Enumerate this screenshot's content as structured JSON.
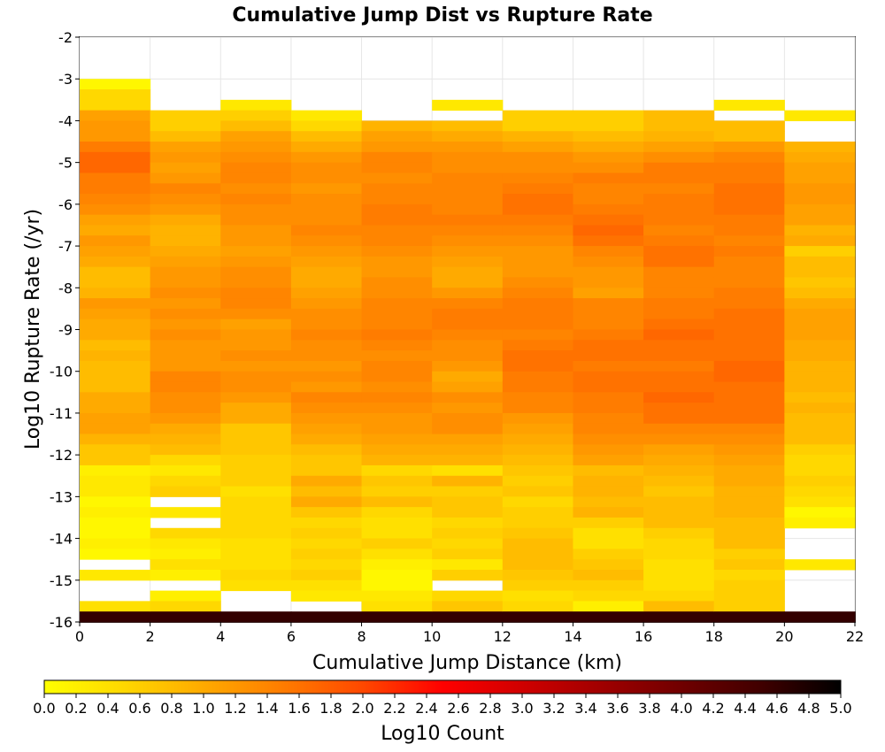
{
  "chart_data": {
    "type": "heatmap",
    "title": "Cumulative Jump Dist vs Rupture Rate",
    "xlabel": "Cumulative Jump Distance (km)",
    "ylabel": "Log10 Rupture Rate (/yr)",
    "xlim": [
      0,
      22
    ],
    "ylim": [
      -16,
      -2
    ],
    "x_ticks": [
      "0",
      "2",
      "4",
      "6",
      "8",
      "10",
      "12",
      "14",
      "16",
      "18",
      "20",
      "22"
    ],
    "y_ticks": [
      "-2",
      "-3",
      "-4",
      "-5",
      "-6",
      "-7",
      "-8",
      "-9",
      "-10",
      "-11",
      "-12",
      "-13",
      "-14",
      "-15",
      "-16"
    ],
    "x_bin_width": 2,
    "y_bin_height": 0.25,
    "y_top": -3,
    "grid": true,
    "colorbar": {
      "label": "Log10 Count",
      "range": [
        0,
        5
      ],
      "ticks": [
        "0.0",
        "0.2",
        "0.4",
        "0.6",
        "0.8",
        "1.0",
        "1.2",
        "1.4",
        "1.6",
        "1.8",
        "2.0",
        "2.2",
        "2.4",
        "2.6",
        "2.8",
        "3.0",
        "3.2",
        "3.4",
        "3.6",
        "3.8",
        "4.0",
        "4.2",
        "4.4",
        "4.6",
        "4.8",
        "5.0"
      ],
      "colors": [
        "#ffff00",
        "#ffd800",
        "#ffaa00",
        "#ff7c00",
        "#ff4800",
        "#ff0000",
        "#d00000",
        "#a00000",
        "#700000",
        "#400000",
        "#000000"
      ]
    },
    "columns": [
      {
        "x_start": 0,
        "values": [
          0.1,
          0.5,
          0.5,
          1.1,
          1.2,
          1.2,
          1.5,
          1.7,
          1.7,
          1.5,
          1.5,
          1.4,
          1.3,
          1.1,
          1.0,
          1.2,
          1.1,
          1.0,
          0.8,
          0.8,
          0.9,
          1.2,
          1.1,
          1.0,
          1.0,
          0.8,
          0.9,
          0.8,
          0.8,
          0.8,
          1.0,
          1.0,
          1.1,
          1.1,
          0.9,
          0.7,
          0.7,
          0.2,
          0.3,
          0.3,
          0.1,
          0.2,
          0.1,
          0.1,
          0.2,
          0.1,
          null,
          0.3,
          null,
          null,
          0.4,
          4.6
        ]
      },
      {
        "x_start": 2,
        "values": [
          null,
          null,
          null,
          0.6,
          0.6,
          0.8,
          1.1,
          1.2,
          1.1,
          1.2,
          1.4,
          1.3,
          1.2,
          1.0,
          0.9,
          0.9,
          1.0,
          1.1,
          1.2,
          1.2,
          1.3,
          1.2,
          1.3,
          1.2,
          1.3,
          1.2,
          1.2,
          1.2,
          1.4,
          1.4,
          1.3,
          1.3,
          1.2,
          1.0,
          0.9,
          0.8,
          0.5,
          0.3,
          0.5,
          0.6,
          null,
          0.3,
          null,
          0.5,
          0.3,
          0.2,
          0.4,
          0.2,
          null,
          0.2,
          0.5,
          4.6
        ]
      },
      {
        "x_start": 4,
        "values": [
          null,
          null,
          0.3,
          0.6,
          0.8,
          1.1,
          1.2,
          1.3,
          1.4,
          1.4,
          1.3,
          1.4,
          1.3,
          1.3,
          1.2,
          1.2,
          1.1,
          1.2,
          1.3,
          1.3,
          1.4,
          1.4,
          1.3,
          1.1,
          1.2,
          1.2,
          1.3,
          1.2,
          1.3,
          1.3,
          1.2,
          1.0,
          1.0,
          0.7,
          0.7,
          0.7,
          0.6,
          0.6,
          0.6,
          0.4,
          0.5,
          0.5,
          0.5,
          0.5,
          0.4,
          0.4,
          0.4,
          0.5,
          0.4,
          null,
          null,
          4.6
        ]
      },
      {
        "x_start": 6,
        "values": [
          null,
          null,
          null,
          0.3,
          0.5,
          0.8,
          1.0,
          1.2,
          1.3,
          1.3,
          1.2,
          1.3,
          1.3,
          1.3,
          1.4,
          1.3,
          1.2,
          1.1,
          1.0,
          1.0,
          1.1,
          1.2,
          1.3,
          1.3,
          1.4,
          1.3,
          1.3,
          1.2,
          1.3,
          1.2,
          1.4,
          1.3,
          1.2,
          1.1,
          1.0,
          0.8,
          0.7,
          0.7,
          1.0,
          0.8,
          1.0,
          0.7,
          0.5,
          0.6,
          0.5,
          0.6,
          0.5,
          0.6,
          0.4,
          0.3,
          null,
          4.6
        ]
      },
      {
        "x_start": 8,
        "values": [
          null,
          null,
          null,
          null,
          0.9,
          1.1,
          1.2,
          1.4,
          1.4,
          1.3,
          1.4,
          1.4,
          1.5,
          1.5,
          1.4,
          1.4,
          1.3,
          1.2,
          1.2,
          1.3,
          1.3,
          1.4,
          1.4,
          1.4,
          1.5,
          1.4,
          1.3,
          1.4,
          1.4,
          1.3,
          1.4,
          1.3,
          1.2,
          1.2,
          1.1,
          1.0,
          0.9,
          0.5,
          0.7,
          0.6,
          0.8,
          0.5,
          0.4,
          0.4,
          0.6,
          0.4,
          0.2,
          0.1,
          0.1,
          0.3,
          0.4,
          4.6
        ]
      },
      {
        "x_start": 10,
        "values": [
          null,
          null,
          0.3,
          null,
          0.8,
          1.0,
          1.2,
          1.3,
          1.3,
          1.4,
          1.4,
          1.4,
          1.4,
          1.5,
          1.4,
          1.3,
          1.2,
          1.1,
          1.0,
          1.0,
          1.2,
          1.4,
          1.5,
          1.5,
          1.4,
          1.3,
          1.3,
          1.2,
          1.0,
          1.1,
          1.3,
          1.2,
          1.3,
          1.3,
          1.1,
          1.0,
          0.9,
          0.4,
          0.9,
          0.6,
          0.7,
          0.7,
          0.5,
          0.6,
          0.5,
          0.6,
          0.3,
          0.6,
          null,
          0.5,
          0.7,
          4.6
        ]
      },
      {
        "x_start": 12,
        "values": [
          null,
          null,
          null,
          0.6,
          0.6,
          0.9,
          1.1,
          1.3,
          1.3,
          1.4,
          1.5,
          1.6,
          1.6,
          1.5,
          1.4,
          1.3,
          1.2,
          1.2,
          1.2,
          1.3,
          1.4,
          1.5,
          1.5,
          1.5,
          1.4,
          1.5,
          1.6,
          1.6,
          1.5,
          1.5,
          1.4,
          1.4,
          1.2,
          1.1,
          1.0,
          0.9,
          0.8,
          0.7,
          0.6,
          0.7,
          0.5,
          0.6,
          0.6,
          0.7,
          0.8,
          0.8,
          0.8,
          0.7,
          0.6,
          0.4,
          0.5,
          4.6
        ]
      },
      {
        "x_start": 14,
        "values": [
          null,
          null,
          null,
          0.6,
          0.6,
          0.8,
          1.0,
          1.2,
          1.3,
          1.5,
          1.4,
          1.4,
          1.5,
          1.6,
          1.7,
          1.6,
          1.4,
          1.3,
          1.2,
          1.2,
          1.1,
          1.4,
          1.4,
          1.4,
          1.5,
          1.6,
          1.6,
          1.5,
          1.6,
          1.6,
          1.5,
          1.5,
          1.4,
          1.4,
          1.3,
          1.2,
          1.1,
          0.8,
          0.9,
          0.9,
          0.8,
          0.9,
          0.6,
          0.4,
          0.4,
          0.6,
          0.7,
          0.8,
          0.6,
          0.5,
          0.2,
          4.6
        ]
      },
      {
        "x_start": 16,
        "values": [
          null,
          null,
          null,
          0.8,
          0.8,
          0.9,
          1.1,
          1.3,
          1.5,
          1.5,
          1.4,
          1.5,
          1.5,
          1.5,
          1.4,
          1.5,
          1.6,
          1.6,
          1.4,
          1.4,
          1.4,
          1.5,
          1.5,
          1.6,
          1.7,
          1.6,
          1.6,
          1.5,
          1.6,
          1.6,
          1.7,
          1.6,
          1.6,
          1.4,
          1.3,
          1.1,
          1.0,
          0.9,
          0.8,
          0.7,
          0.8,
          0.8,
          0.8,
          0.6,
          0.5,
          0.5,
          0.4,
          0.4,
          0.4,
          0.5,
          0.8,
          4.6
        ]
      },
      {
        "x_start": 18,
        "values": [
          null,
          null,
          0.3,
          null,
          0.8,
          0.8,
          1.2,
          1.4,
          1.5,
          1.5,
          1.6,
          1.6,
          1.6,
          1.5,
          1.5,
          1.4,
          1.5,
          1.4,
          1.4,
          1.4,
          1.5,
          1.5,
          1.6,
          1.6,
          1.6,
          1.6,
          1.6,
          1.7,
          1.7,
          1.6,
          1.6,
          1.6,
          1.6,
          1.4,
          1.3,
          1.2,
          1.1,
          1.0,
          1.0,
          0.9,
          0.9,
          0.9,
          0.8,
          0.8,
          0.8,
          0.6,
          0.7,
          0.5,
          0.6,
          0.6,
          0.6,
          4.6
        ]
      },
      {
        "x_start": 20,
        "values": [
          null,
          null,
          null,
          0.3,
          null,
          null,
          0.9,
          1.0,
          1.1,
          1.1,
          1.2,
          1.2,
          1.1,
          1.1,
          0.9,
          1.0,
          0.6,
          0.8,
          0.8,
          0.7,
          0.8,
          1.0,
          1.1,
          1.1,
          1.1,
          1.0,
          1.0,
          0.9,
          0.9,
          0.9,
          0.8,
          0.9,
          0.8,
          0.8,
          0.8,
          0.6,
          0.5,
          0.5,
          0.6,
          0.5,
          0.4,
          0.1,
          0.2,
          null,
          null,
          null,
          0.3,
          null,
          null,
          null,
          null,
          4.6
        ]
      }
    ]
  }
}
